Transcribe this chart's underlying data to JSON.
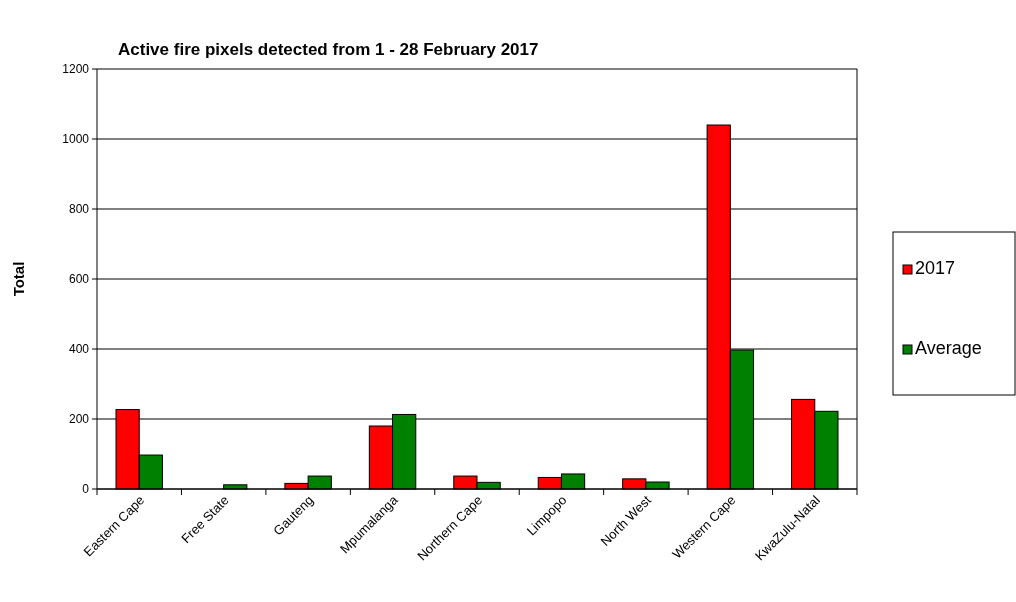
{
  "chart_data": {
    "type": "bar",
    "title": "Active fire pixels detected from 1 - 28 February 2017",
    "ylabel": "Total",
    "categories": [
      "Eastern Cape",
      "Free State",
      "Gauteng",
      "Mpumalanga",
      "Northern Cape",
      "Limpopo",
      "North West",
      "Western Cape",
      "KwaZulu-Natal"
    ],
    "series": [
      {
        "name": "2017",
        "color": "#ff0000",
        "values": [
          227,
          0,
          16,
          180,
          37,
          33,
          29,
          1040,
          256
        ]
      },
      {
        "name": "Average",
        "color": "#008000",
        "values": [
          97,
          12,
          37,
          213,
          19,
          43,
          20,
          397,
          222
        ]
      }
    ],
    "ylim": [
      0,
      1200
    ],
    "yticks": [
      0,
      200,
      400,
      600,
      800,
      1000,
      1200
    ],
    "grid": "y",
    "legend": "right"
  }
}
